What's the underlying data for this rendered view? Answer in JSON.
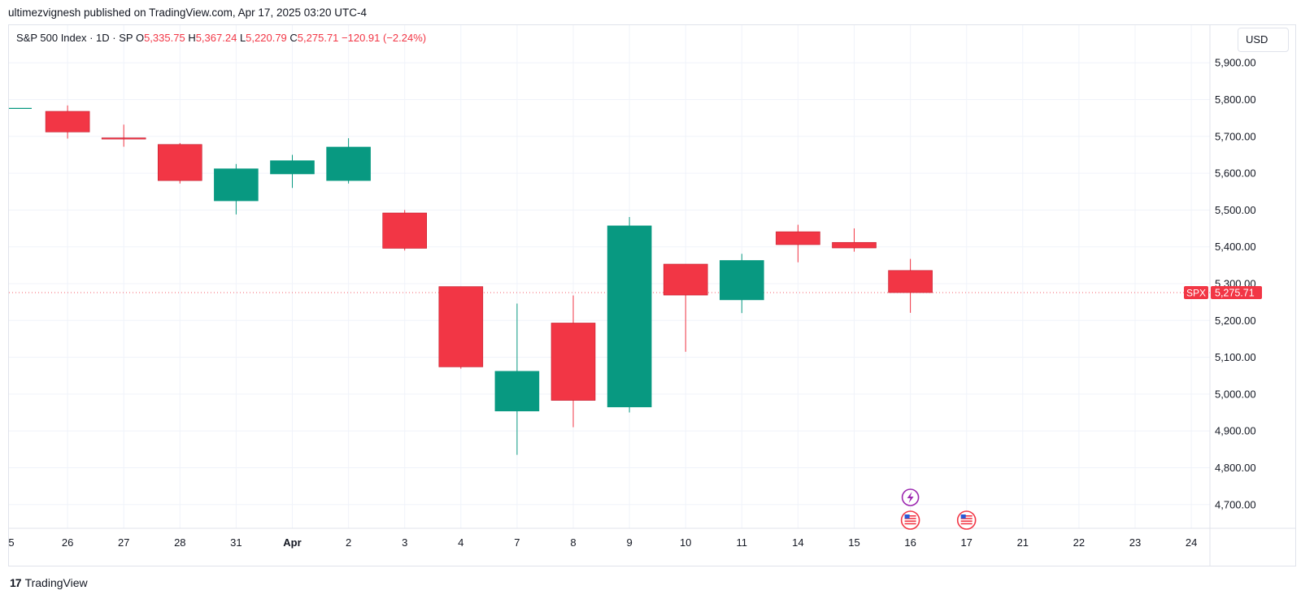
{
  "header": {
    "published_by": "ultimezvignesh published on TradingView.com, Apr 17, 2025 03:20 UTC-4"
  },
  "legend": {
    "symbol_title": "S&P 500 Index · 1D · SP",
    "open_key": "O",
    "open": "5,335.75",
    "high_key": "H",
    "high": "5,367.24",
    "low_key": "L",
    "low": "5,220.79",
    "close_key": "C",
    "close": "5,275.71",
    "change": "−120.91 (−2.24%)"
  },
  "currency": "USD",
  "price_tag": {
    "symbol": "SPX",
    "price": "5,275.71",
    "value": 5275.71
  },
  "footer": {
    "logo_mark": "17",
    "brand": "TradingView"
  },
  "colors": {
    "up": "#089981",
    "down": "#f23645",
    "grid": "#f0f3fa",
    "axis_text": "#131722"
  },
  "chart_data": {
    "type": "candlestick",
    "title": "S&P 500 Index · 1D · SP",
    "ylim": [
      4620,
      5960
    ],
    "y_ticks": [
      4700,
      4800,
      4900,
      5000,
      5100,
      5200,
      5300,
      5400,
      5500,
      5600,
      5700,
      5800,
      5900
    ],
    "y_tick_labels": [
      "4,700.00",
      "4,800.00",
      "4,900.00",
      "5,000.00",
      "5,100.00",
      "5,200.00",
      "5,300.00",
      "5,400.00",
      "5,500.00",
      "5,600.00",
      "5,700.00",
      "5,800.00",
      "5,900.00"
    ],
    "x_labels": [
      "5",
      "26",
      "27",
      "28",
      "31",
      "Apr",
      "2",
      "3",
      "4",
      "7",
      "8",
      "9",
      "10",
      "11",
      "14",
      "15",
      "16",
      "17",
      "21",
      "22",
      "23",
      "24"
    ],
    "x_label_bold": [
      "Apr"
    ],
    "candles": [
      {
        "date": "25",
        "open": 5775,
        "high": 5776,
        "low": 5774,
        "close": 5776
      },
      {
        "date": "26",
        "open": 5768,
        "high": 5784,
        "low": 5694,
        "close": 5712
      },
      {
        "date": "27",
        "open": 5696,
        "high": 5732,
        "low": 5672,
        "close": 5693
      },
      {
        "date": "28",
        "open": 5678,
        "high": 5682,
        "low": 5572,
        "close": 5580
      },
      {
        "date": "31",
        "open": 5525,
        "high": 5625,
        "low": 5488,
        "close": 5612
      },
      {
        "date": "Apr",
        "open": 5598,
        "high": 5650,
        "low": 5560,
        "close": 5634
      },
      {
        "date": "2",
        "open": 5580,
        "high": 5695,
        "low": 5572,
        "close": 5671
      },
      {
        "date": "3",
        "open": 5492,
        "high": 5500,
        "low": 5390,
        "close": 5396
      },
      {
        "date": "4",
        "open": 5292,
        "high": 5292,
        "low": 5069,
        "close": 5074
      },
      {
        "date": "7",
        "open": 4954,
        "high": 5246,
        "low": 4835,
        "close": 5062
      },
      {
        "date": "8",
        "open": 5193,
        "high": 5268,
        "low": 4910,
        "close": 4983
      },
      {
        "date": "9",
        "open": 4965,
        "high": 5481,
        "low": 4950,
        "close": 5457
      },
      {
        "date": "10",
        "open": 5353,
        "high": 5353,
        "low": 5115,
        "close": 5269
      },
      {
        "date": "11",
        "open": 5256,
        "high": 5381,
        "low": 5220,
        "close": 5363
      },
      {
        "date": "14",
        "open": 5441,
        "high": 5460,
        "low": 5358,
        "close": 5406
      },
      {
        "date": "15",
        "open": 5412,
        "high": 5450,
        "low": 5387,
        "close": 5397
      },
      {
        "date": "16",
        "open": 5335.75,
        "high": 5367.24,
        "low": 5220.79,
        "close": 5275.71
      }
    ],
    "last_price": 5275.71,
    "event_markers": [
      {
        "date": "16",
        "icon": "lightning-icon"
      },
      {
        "date": "16",
        "icon": "us-flag-icon"
      },
      {
        "date": "17",
        "icon": "us-flag-icon"
      }
    ],
    "grid": true
  }
}
